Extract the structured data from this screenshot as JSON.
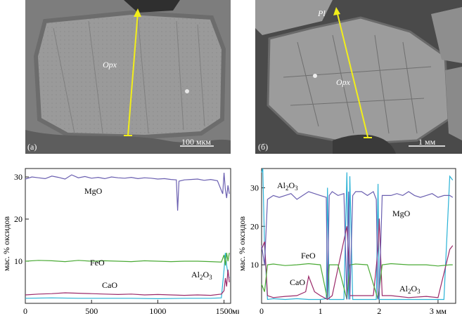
{
  "images": [
    {
      "panel_tag": "(а)",
      "mineral_label": "Opx",
      "scale_label": "100 мкм"
    },
    {
      "panel_tag": "(б)",
      "mineral_label": "Opx",
      "plagioclase_label": "Pl",
      "scale_label": "1 мм"
    }
  ],
  "colors": {
    "MgO": "#6a5fb0",
    "FeO": "#4aaa35",
    "CaO": "#9b2a6a",
    "Al2O3": "#2ab2d6",
    "profile_line": "#f2ee1a"
  },
  "chart_data": [
    {
      "type": "line",
      "title": "",
      "ylabel": "мас. % оксидов",
      "xlabel": "",
      "x_unit": "мкм",
      "xlim": [
        0,
        1550
      ],
      "ylim": [
        0,
        32
      ],
      "x_ticks": [
        "0",
        "500",
        "1000",
        "1500"
      ],
      "y_ticks": [
        "10",
        "20",
        "30"
      ],
      "series": [
        {
          "name": "MgO",
          "x": [
            0,
            50,
            100,
            150,
            200,
            250,
            300,
            350,
            400,
            450,
            500,
            550,
            600,
            650,
            700,
            750,
            800,
            850,
            900,
            950,
            1000,
            1050,
            1100,
            1140,
            1150,
            1160,
            1200,
            1250,
            1300,
            1350,
            1400,
            1450,
            1490,
            1500,
            1510,
            1520,
            1530,
            1540
          ],
          "y": [
            29.5,
            30,
            29.8,
            29.6,
            30.2,
            29.9,
            29.5,
            30.5,
            29.8,
            30.1,
            29.7,
            29.9,
            29.6,
            30,
            29.8,
            29.7,
            29.9,
            29.6,
            29.8,
            29.7,
            29.5,
            29.6,
            29.4,
            29.3,
            22,
            29,
            29.3,
            29.4,
            29.5,
            29.2,
            29.4,
            29.1,
            26,
            31,
            27,
            25,
            28,
            26
          ]
        },
        {
          "name": "FeO",
          "x": [
            0,
            100,
            200,
            300,
            400,
            500,
            600,
            700,
            800,
            900,
            1000,
            1100,
            1200,
            1300,
            1400,
            1480,
            1500,
            1510,
            1520,
            1530,
            1540
          ],
          "y": [
            10,
            10.2,
            10.1,
            9.9,
            10.2,
            10,
            10.1,
            10,
            9.9,
            10.1,
            10,
            9.9,
            10,
            10,
            9.9,
            9.8,
            11.5,
            9,
            12,
            10,
            12
          ]
        },
        {
          "name": "CaO",
          "x": [
            0,
            100,
            200,
            300,
            400,
            500,
            600,
            700,
            800,
            900,
            1000,
            1100,
            1200,
            1300,
            1400,
            1480,
            1500,
            1510,
            1520,
            1530,
            1540
          ],
          "y": [
            2,
            2.2,
            2.3,
            2.5,
            2.4,
            2.3,
            2.2,
            2.1,
            2.2,
            2.0,
            2.1,
            2.0,
            1.9,
            2.0,
            1.9,
            2.2,
            3,
            6,
            4,
            8,
            5
          ]
        },
        {
          "name": "Al2O3",
          "x": [
            0,
            200,
            400,
            600,
            800,
            1000,
            1200,
            1400,
            1480,
            1500,
            1510,
            1520,
            1530,
            1540
          ],
          "y": [
            1.2,
            1.3,
            1.2,
            1.2,
            1.2,
            1.1,
            1.2,
            1.2,
            1.3,
            8,
            12,
            9,
            7,
            6
          ]
        }
      ],
      "annotations": [
        "MgO",
        "FeO",
        "CaO",
        "Al2O3"
      ]
    },
    {
      "type": "line",
      "title": "",
      "ylabel": "мас. % оксидов",
      "xlabel": "",
      "x_unit": "мм",
      "xlim": [
        0,
        3.3
      ],
      "ylim": [
        0,
        35
      ],
      "x_ticks": [
        "0",
        "1",
        "2",
        "3 мм"
      ],
      "y_ticks": [
        "10",
        "20",
        "30"
      ],
      "series": [
        {
          "name": "MgO",
          "x": [
            0,
            0.05,
            0.1,
            0.2,
            0.3,
            0.4,
            0.5,
            0.6,
            0.7,
            0.8,
            0.9,
            1.0,
            1.1,
            1.12,
            1.15,
            1.2,
            1.3,
            1.4,
            1.45,
            1.48,
            1.5,
            1.55,
            1.6,
            1.7,
            1.8,
            1.9,
            1.95,
            1.98,
            2.0,
            2.05,
            2.1,
            2.2,
            2.3,
            2.4,
            2.5,
            2.6,
            2.7,
            2.8,
            2.9,
            3.0,
            3.1,
            3.2,
            3.25
          ],
          "y": [
            15,
            10,
            27,
            28,
            27.5,
            28,
            28.5,
            27,
            28,
            29,
            28.5,
            28,
            27.5,
            1,
            28,
            29,
            28,
            28.5,
            1,
            29,
            1,
            28,
            29,
            29,
            28,
            29,
            27,
            1,
            2,
            28,
            28,
            28,
            28.5,
            28,
            29,
            28,
            27.5,
            28,
            28.5,
            27.5,
            28,
            28,
            27.5
          ]
        },
        {
          "name": "FeO",
          "x": [
            0,
            0.05,
            0.1,
            0.2,
            0.4,
            0.6,
            0.8,
            1.0,
            1.12,
            1.15,
            1.3,
            1.45,
            1.5,
            1.6,
            1.8,
            1.98,
            2.05,
            2.2,
            2.5,
            2.8,
            3.0,
            3.2,
            3.25
          ],
          "y": [
            5,
            3,
            10,
            10.2,
            9.8,
            10,
            10.3,
            10,
            1,
            10,
            10,
            1,
            10,
            10.2,
            10,
            1,
            10,
            10.3,
            10,
            10,
            9.7,
            10,
            10
          ]
        },
        {
          "name": "CaO",
          "x": [
            0,
            0.05,
            0.1,
            0.2,
            0.4,
            0.6,
            0.75,
            0.8,
            0.9,
            1.0,
            1.12,
            1.2,
            1.45,
            1.48,
            1.5,
            1.55,
            1.7,
            1.9,
            1.98,
            2.0,
            2.05,
            2.2,
            2.5,
            2.8,
            3.0,
            3.2,
            3.25
          ],
          "y": [
            14,
            16,
            2,
            1.5,
            1.8,
            2,
            3,
            7,
            3,
            2,
            1,
            2,
            20,
            12,
            2,
            2,
            2,
            2,
            14,
            22,
            2,
            2,
            1.5,
            1.8,
            1.5,
            14,
            15
          ]
        },
        {
          "name": "Al2O3",
          "x": [
            0,
            0.02,
            0.05,
            0.1,
            0.2,
            0.4,
            0.6,
            0.8,
            1.0,
            1.1,
            1.12,
            1.15,
            1.2,
            1.4,
            1.45,
            1.48,
            1.5,
            1.55,
            1.6,
            1.8,
            1.95,
            1.98,
            2.0,
            2.05,
            2.1,
            2.4,
            2.8,
            3.0,
            3.1,
            3.2,
            3.25
          ],
          "y": [
            34,
            35,
            15,
            1,
            1.2,
            1,
            1.2,
            1,
            1,
            1.2,
            30,
            1,
            1,
            1,
            34,
            1,
            33,
            1,
            1,
            1,
            1,
            31,
            1,
            1,
            1,
            1,
            1,
            1,
            1,
            33,
            32
          ]
        }
      ],
      "annotations": [
        "Al2O3",
        "MgO",
        "FeO",
        "CaO",
        "Al2O3"
      ]
    }
  ]
}
